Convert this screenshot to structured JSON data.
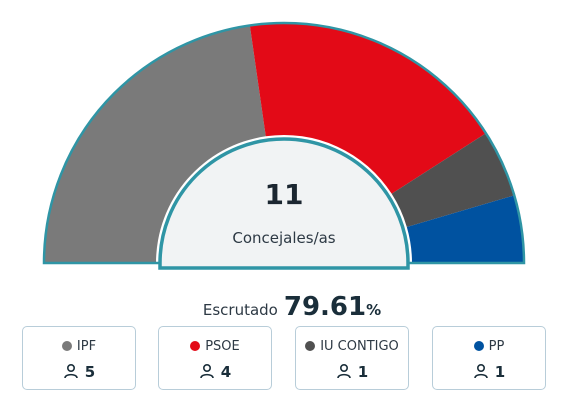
{
  "chart_data": {
    "type": "hemicycle",
    "total_seats": "11",
    "total_label": "Concejales/as",
    "scrutiny_label": "Escrutado",
    "scrutiny_value": "79.61",
    "scrutiny_unit": "%",
    "parties": [
      {
        "name": "IPF",
        "seats": 5,
        "seats_text": "5",
        "color": "#7a7a7a"
      },
      {
        "name": "PSOE",
        "seats": 4,
        "seats_text": "4",
        "color": "#e30a17"
      },
      {
        "name": "IU CONTIGO",
        "seats": 1,
        "seats_text": "1",
        "color": "#505050"
      },
      {
        "name": "PP",
        "seats": 1,
        "seats_text": "1",
        "color": "#0052a0"
      }
    ]
  },
  "style": {
    "border_color": "#2f95a5",
    "inner_fill": "#f1f3f4"
  }
}
